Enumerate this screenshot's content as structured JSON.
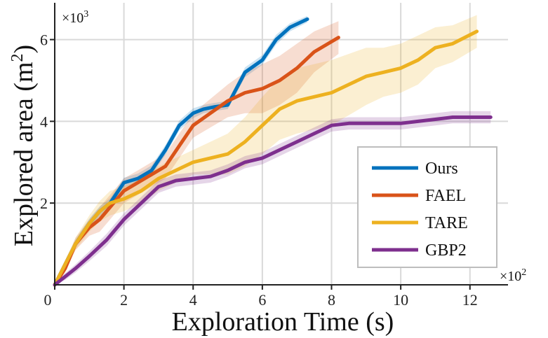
{
  "chart_data": {
    "type": "line",
    "xlabel": "Exploration Time (s)",
    "ylabel_main": "Explored area (m",
    "ylabel_sup": "2",
    "ylabel_end": ")",
    "x_multiplier": "×10",
    "x_multiplier_exp": "2",
    "y_multiplier": "×10",
    "y_multiplier_exp": "3",
    "xlim": [
      0,
      13.1
    ],
    "ylim": [
      0,
      6.9
    ],
    "xticks": [
      0,
      2,
      4,
      6,
      8,
      10,
      12
    ],
    "xtick_labels": [
      "0",
      "2",
      "4",
      "6",
      "8",
      "10",
      "12"
    ],
    "yticks": [
      2,
      4,
      6
    ],
    "ytick_labels": [
      "2",
      "4",
      "6"
    ],
    "grid": true,
    "legend_position": "bottom-right",
    "series": [
      {
        "name": "Ours",
        "color": "#0072BD",
        "x": [
          0.0,
          0.3,
          0.6,
          1.0,
          1.3,
          1.6,
          2.0,
          2.4,
          2.8,
          3.2,
          3.6,
          4.0,
          4.3,
          4.6,
          5.0,
          5.5,
          6.0,
          6.4,
          6.8,
          7.3
        ],
        "y": [
          0.0,
          0.5,
          1.0,
          1.5,
          1.8,
          2.0,
          2.5,
          2.6,
          2.8,
          3.3,
          3.9,
          4.2,
          4.3,
          4.35,
          4.4,
          5.2,
          5.5,
          6.0,
          6.3,
          6.5
        ],
        "band": [
          0.05,
          0.08,
          0.1,
          0.12,
          0.12,
          0.12,
          0.12,
          0.12,
          0.12,
          0.12,
          0.12,
          0.12,
          0.1,
          0.1,
          0.1,
          0.12,
          0.12,
          0.12,
          0.1,
          0.08
        ]
      },
      {
        "name": "FAEL",
        "color": "#D95319",
        "x": [
          0.0,
          0.3,
          0.6,
          1.0,
          1.3,
          1.6,
          2.0,
          2.4,
          2.8,
          3.2,
          3.6,
          4.0,
          4.5,
          5.0,
          5.5,
          6.0,
          6.5,
          7.0,
          7.5,
          8.2
        ],
        "y": [
          0.0,
          0.4,
          1.0,
          1.4,
          1.6,
          1.9,
          2.3,
          2.5,
          2.7,
          2.9,
          3.4,
          3.9,
          4.2,
          4.5,
          4.7,
          4.8,
          5.0,
          5.3,
          5.7,
          6.05
        ],
        "band": [
          0.05,
          0.1,
          0.15,
          0.2,
          0.3,
          0.3,
          0.3,
          0.3,
          0.3,
          0.3,
          0.3,
          0.3,
          0.35,
          0.4,
          0.5,
          0.6,
          0.6,
          0.6,
          0.5,
          0.4
        ]
      },
      {
        "name": "TARE",
        "color": "#EDB120",
        "x": [
          0.0,
          0.3,
          0.6,
          1.0,
          1.3,
          1.6,
          2.0,
          2.5,
          3.0,
          3.5,
          4.0,
          4.5,
          5.0,
          5.5,
          6.0,
          6.5,
          7.0,
          7.5,
          8.0,
          8.5,
          9.0,
          9.5,
          10.0,
          10.5,
          11.0,
          11.5,
          12.2
        ],
        "y": [
          0.0,
          0.5,
          1.0,
          1.5,
          1.8,
          2.0,
          2.1,
          2.3,
          2.6,
          2.8,
          3.0,
          3.1,
          3.2,
          3.5,
          3.9,
          4.3,
          4.5,
          4.6,
          4.7,
          4.9,
          5.1,
          5.2,
          5.3,
          5.5,
          5.8,
          5.9,
          6.2
        ],
        "band": [
          0.05,
          0.1,
          0.15,
          0.2,
          0.25,
          0.3,
          0.3,
          0.3,
          0.3,
          0.3,
          0.3,
          0.4,
          0.5,
          0.6,
          0.7,
          0.75,
          0.8,
          0.8,
          0.8,
          0.75,
          0.7,
          0.6,
          0.6,
          0.6,
          0.5,
          0.45,
          0.4
        ]
      },
      {
        "name": "GBP2",
        "color": "#7E2F8E",
        "x": [
          0.0,
          0.3,
          0.6,
          1.0,
          1.5,
          2.0,
          2.5,
          3.0,
          3.5,
          4.0,
          4.5,
          5.0,
          5.5,
          6.0,
          6.5,
          7.0,
          7.5,
          8.0,
          8.5,
          9.0,
          9.5,
          10.0,
          10.5,
          11.0,
          11.5,
          12.0,
          12.6
        ],
        "y": [
          0.0,
          0.2,
          0.4,
          0.7,
          1.1,
          1.6,
          2.0,
          2.4,
          2.55,
          2.6,
          2.65,
          2.8,
          3.0,
          3.1,
          3.3,
          3.5,
          3.7,
          3.9,
          3.95,
          3.95,
          3.95,
          3.95,
          4.0,
          4.05,
          4.1,
          4.1,
          4.1
        ],
        "band": [
          0.05,
          0.08,
          0.1,
          0.12,
          0.15,
          0.15,
          0.15,
          0.15,
          0.15,
          0.15,
          0.15,
          0.15,
          0.15,
          0.15,
          0.15,
          0.15,
          0.15,
          0.15,
          0.15,
          0.15,
          0.15,
          0.15,
          0.15,
          0.15,
          0.15,
          0.15,
          0.15
        ]
      }
    ]
  }
}
